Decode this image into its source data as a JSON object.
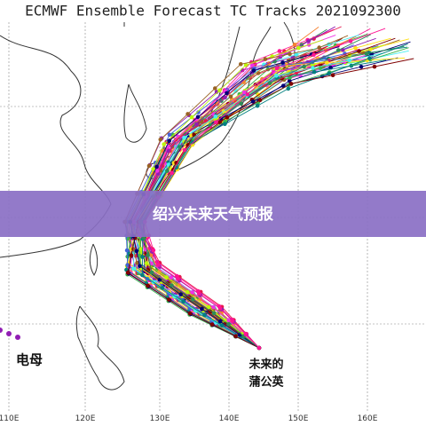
{
  "title": "ECMWF Ensemble Forecast TC Tracks 2021092300",
  "banner": "绍兴未来天气预报",
  "storms": [
    {
      "lines": [
        "电母"
      ]
    },
    {
      "lines": [
        "未来的",
        "蒲公英"
      ]
    }
  ],
  "longitudes": [
    "110E",
    "120E",
    "130E",
    "140E",
    "150E",
    "160E"
  ]
}
